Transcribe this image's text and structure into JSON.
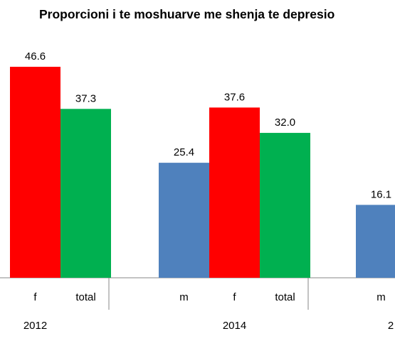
{
  "chart_data": {
    "type": "bar",
    "title": "Proporcioni i te moshuarve me shenja te depresio",
    "groups": [
      {
        "year": "2012",
        "bars": [
          {
            "category": "m",
            "value": null,
            "value_label": "",
            "color": "#4f81bd"
          },
          {
            "category": "f",
            "value": 46.6,
            "value_label": "46.6",
            "color": "#ff0000"
          },
          {
            "category": "total",
            "value": 37.3,
            "value_label": "37.3",
            "color": "#00b050"
          }
        ]
      },
      {
        "year": "2014",
        "bars": [
          {
            "category": "m",
            "value": 25.4,
            "value_label": "25.4",
            "color": "#4f81bd"
          },
          {
            "category": "f",
            "value": 37.6,
            "value_label": "37.6",
            "color": "#ff0000"
          },
          {
            "category": "total",
            "value": 32.0,
            "value_label": "32.0",
            "color": "#00b050"
          }
        ]
      },
      {
        "year": "2",
        "bars": [
          {
            "category": "m",
            "value": 16.1,
            "value_label": "16.1",
            "color": "#4f81bd"
          }
        ]
      }
    ],
    "ylim": [
      0,
      55
    ],
    "grid": false,
    "legend": "none"
  }
}
